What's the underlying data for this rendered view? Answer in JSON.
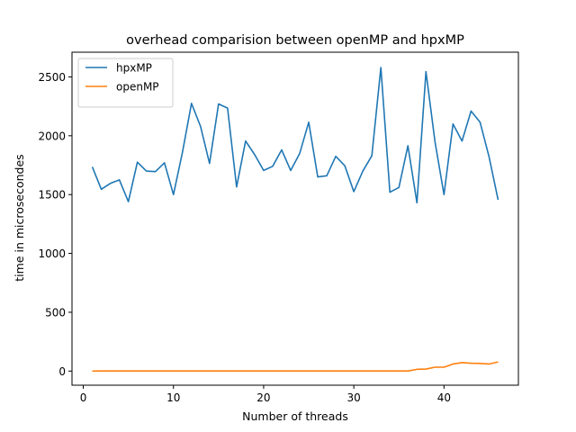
{
  "chart_data": {
    "type": "line",
    "title": "overhead comparision between openMP and hpxMP",
    "xlabel": "Number of threads",
    "ylabel": "time in microsecondes",
    "xlim": [
      -1.25,
      48.25
    ],
    "ylim": [
      -120,
      2710
    ],
    "xticks": [
      0,
      10,
      20,
      30,
      40
    ],
    "yticks": [
      0,
      500,
      1000,
      1500,
      2000,
      2500
    ],
    "legend_position": "top-left",
    "grid": false,
    "series": [
      {
        "name": "hpxMP",
        "color": "#1f77b4",
        "x": [
          1,
          2,
          3,
          4,
          5,
          6,
          7,
          8,
          9,
          10,
          11,
          12,
          13,
          14,
          15,
          16,
          17,
          18,
          19,
          20,
          21,
          22,
          23,
          24,
          25,
          26,
          27,
          28,
          29,
          30,
          31,
          32,
          33,
          34,
          35,
          36,
          37,
          38,
          39,
          40,
          41,
          42,
          43,
          44,
          45,
          46
        ],
        "values": [
          1735,
          1545,
          1595,
          1625,
          1440,
          1775,
          1700,
          1695,
          1770,
          1500,
          1860,
          2275,
          2080,
          1765,
          2270,
          2235,
          1565,
          1955,
          1840,
          1705,
          1740,
          1880,
          1705,
          1850,
          2115,
          1650,
          1660,
          1825,
          1745,
          1525,
          1700,
          1830,
          2580,
          1520,
          1560,
          1915,
          1430,
          2545,
          1950,
          1500,
          2100,
          1955,
          2210,
          2115,
          1820,
          1455
        ]
      },
      {
        "name": "openMP",
        "color": "#ff7f0e",
        "x": [
          1,
          2,
          3,
          4,
          5,
          6,
          7,
          8,
          9,
          10,
          11,
          12,
          13,
          14,
          15,
          16,
          17,
          18,
          19,
          20,
          21,
          22,
          23,
          24,
          25,
          26,
          27,
          28,
          29,
          30,
          31,
          32,
          33,
          34,
          35,
          36,
          37,
          38,
          39,
          40,
          41,
          42,
          43,
          44,
          45,
          46
        ],
        "values": [
          0,
          1,
          1,
          1,
          1,
          1,
          1,
          1,
          1,
          1,
          1,
          1,
          1,
          1,
          1,
          1,
          1,
          1,
          1,
          1,
          1,
          1,
          1,
          1,
          1,
          1,
          1,
          1,
          1,
          1,
          1,
          1,
          1,
          1,
          1,
          1,
          15,
          17,
          33,
          33,
          60,
          72,
          67,
          65,
          60,
          78
        ]
      }
    ]
  }
}
